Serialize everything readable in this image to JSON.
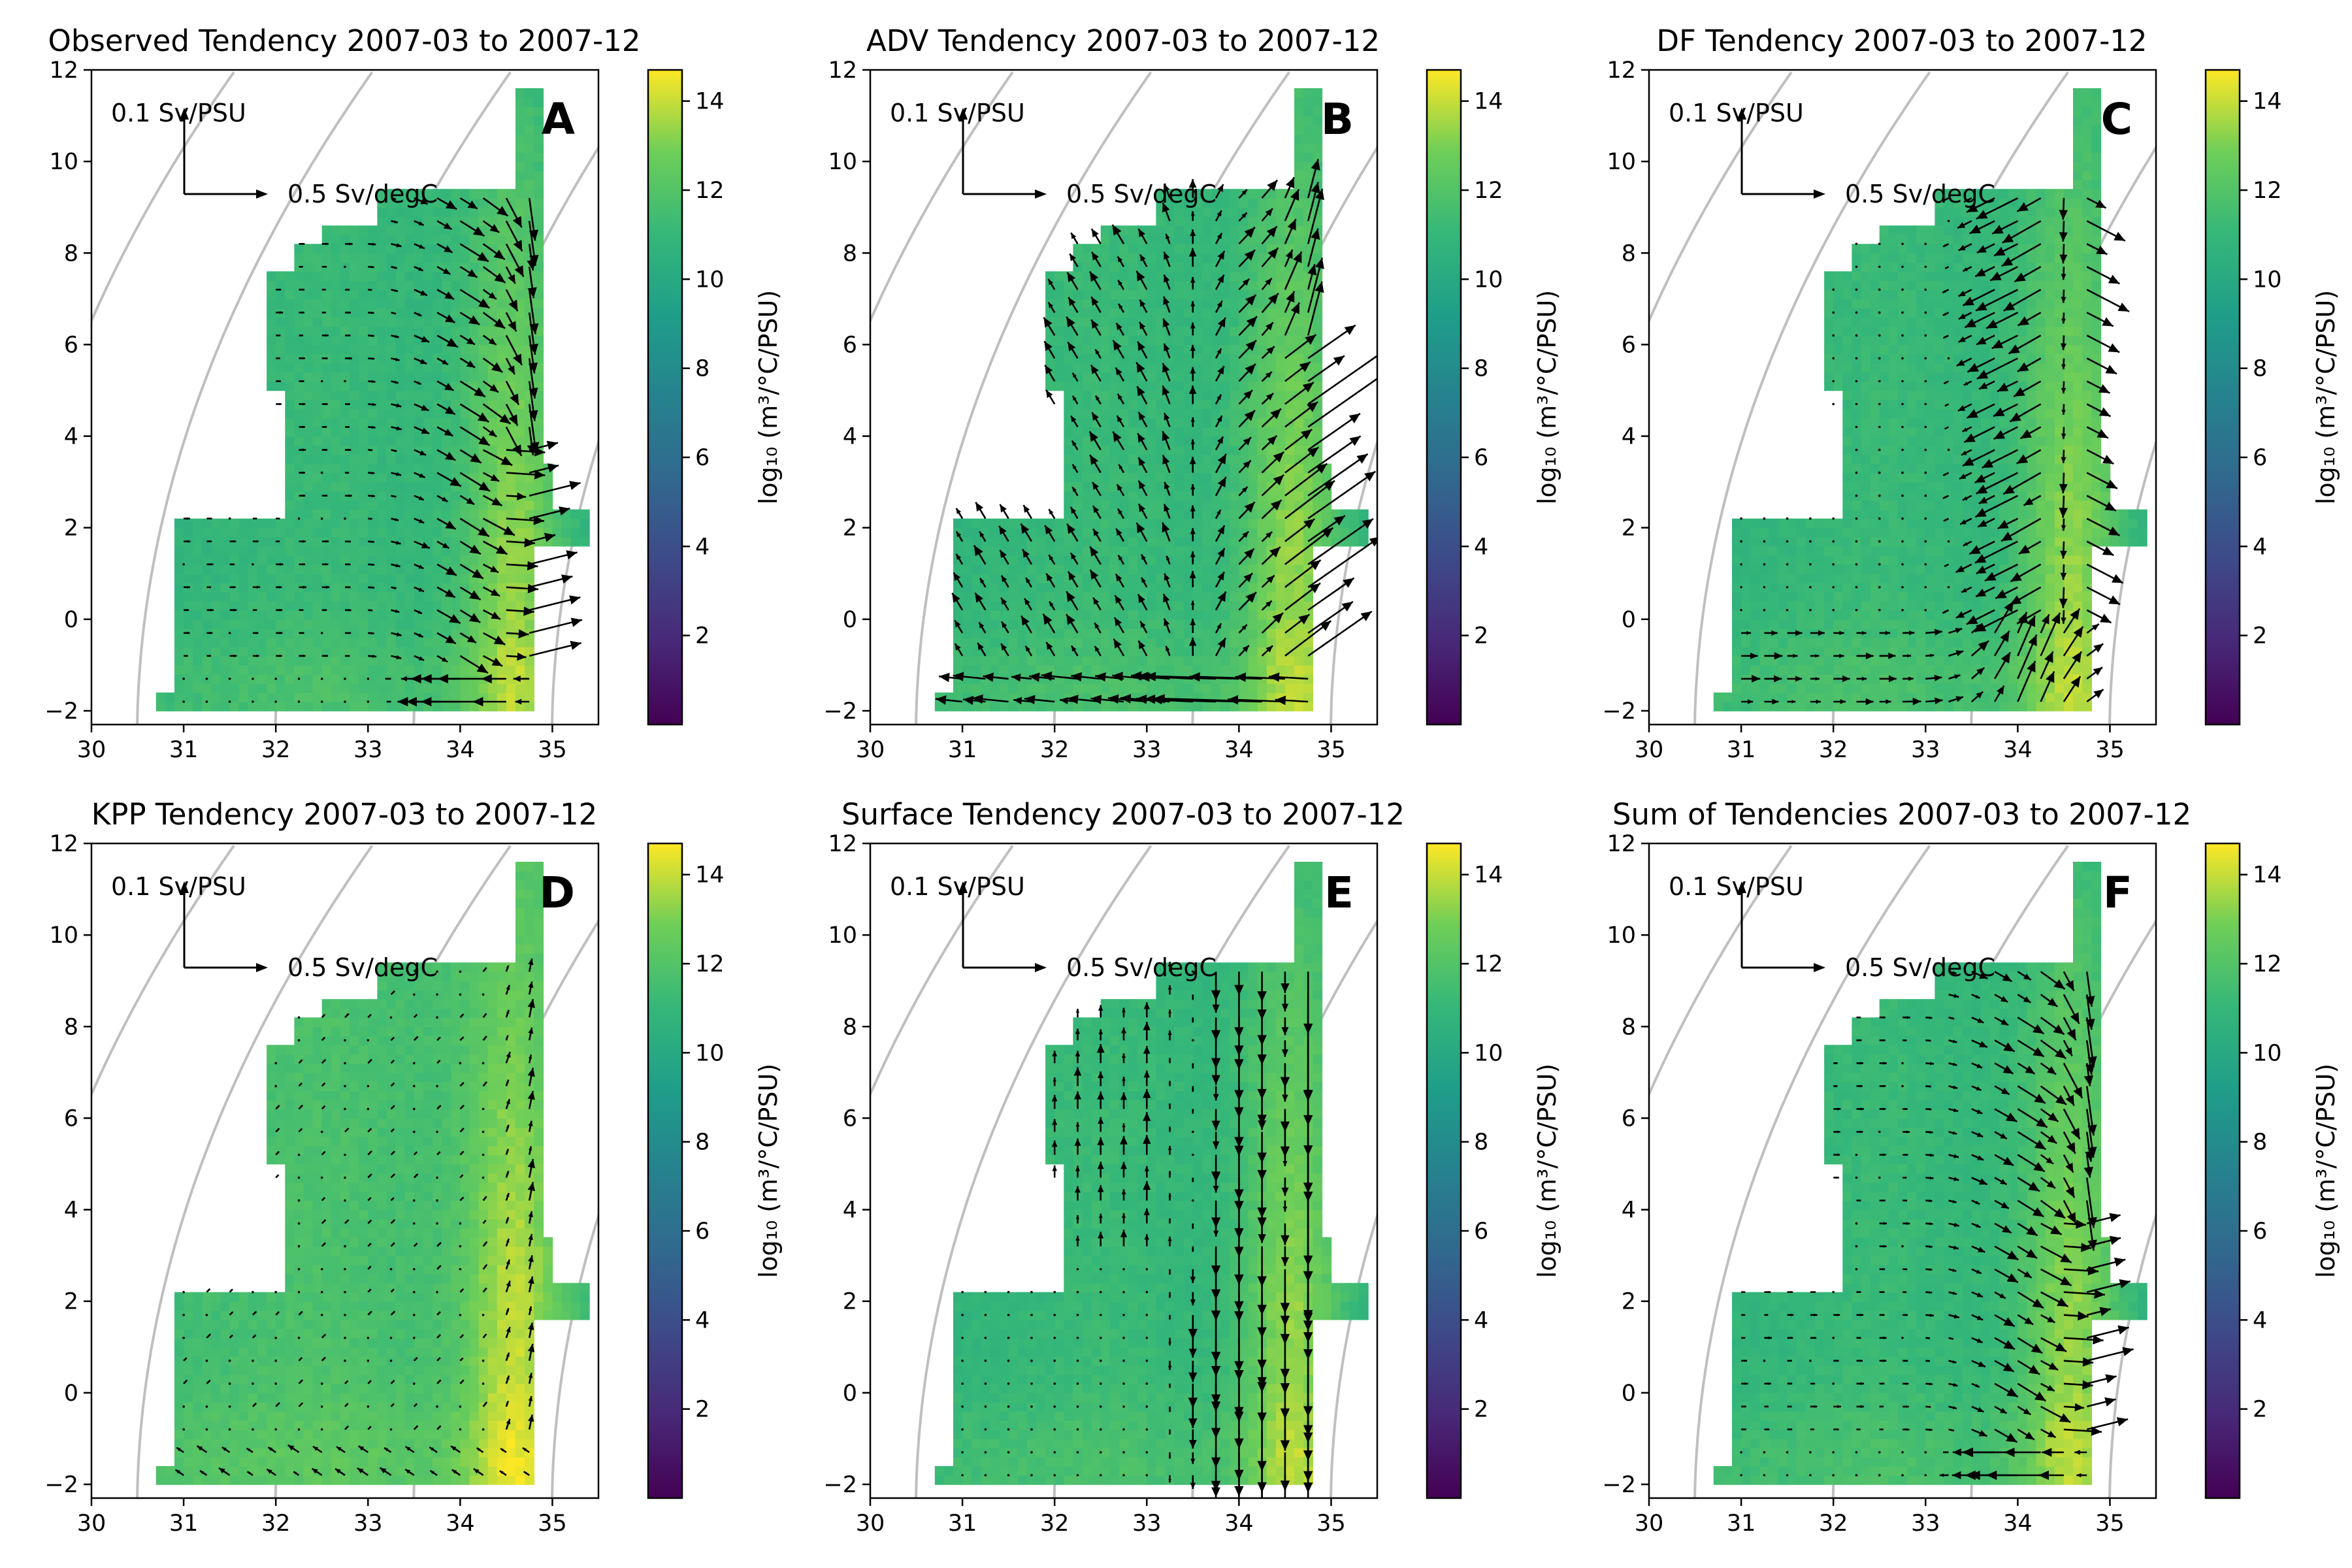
{
  "figure": {
    "colormap": "viridis",
    "quiver_color": "#000000",
    "isopycnal_color": "#bfbfbf",
    "xticks": [
      30,
      31,
      32,
      33,
      34,
      35
    ],
    "yticks": [
      -2,
      0,
      2,
      4,
      6,
      8,
      10,
      12
    ],
    "colorbar_ticks": [
      2,
      4,
      6,
      8,
      10,
      12,
      14
    ],
    "colorbar_label": "log₁₀ (m³/°C/PSU)",
    "key_salinity_label": "0.1 Sv/PSU",
    "key_temperature_label": "0.5 Sv/degC"
  },
  "chart_data": [
    {
      "type": "quiver",
      "panel": "A",
      "title": "Observed Tendency 2007-03 to 2007-12",
      "xlim": [
        30,
        35.5
      ],
      "ylim": [
        -2.3,
        12
      ],
      "clim": [
        0,
        14.7
      ],
      "mode": "observed",
      "key_arrows": {
        "salinity": "0.1 Sv/PSU",
        "temperature": "0.5 Sv/degC"
      }
    },
    {
      "type": "quiver",
      "panel": "B",
      "title": "ADV Tendency 2007-03 to 2007-12",
      "xlim": [
        30,
        35.5
      ],
      "ylim": [
        -2.3,
        12
      ],
      "clim": [
        0,
        14.7
      ],
      "mode": "adv",
      "key_arrows": {
        "salinity": "0.1 Sv/PSU",
        "temperature": "0.5 Sv/degC"
      }
    },
    {
      "type": "quiver",
      "panel": "C",
      "title": "DF Tendency 2007-03 to 2007-12",
      "xlim": [
        30,
        35.5
      ],
      "ylim": [
        -2.3,
        12
      ],
      "clim": [
        0,
        14.7
      ],
      "mode": "df",
      "key_arrows": {
        "salinity": "0.1 Sv/PSU",
        "temperature": "0.5 Sv/degC"
      }
    },
    {
      "type": "quiver",
      "panel": "D",
      "title": "KPP Tendency 2007-03 to 2007-12",
      "xlim": [
        30,
        35.5
      ],
      "ylim": [
        -2.3,
        12
      ],
      "clim": [
        0,
        14.7
      ],
      "mode": "kpp",
      "key_arrows": {
        "salinity": "0.1 Sv/PSU",
        "temperature": "0.5 Sv/degC"
      }
    },
    {
      "type": "quiver",
      "panel": "E",
      "title": "Surface Tendency 2007-03 to 2007-12",
      "xlim": [
        30,
        35.5
      ],
      "ylim": [
        -2.3,
        12
      ],
      "clim": [
        0,
        14.7
      ],
      "mode": "surface",
      "key_arrows": {
        "salinity": "0.1 Sv/PSU",
        "temperature": "0.5 Sv/degC"
      }
    },
    {
      "type": "quiver",
      "panel": "F",
      "title": "Sum of Tendencies 2007-03 to 2007-12",
      "xlim": [
        30,
        35.5
      ],
      "ylim": [
        -2.3,
        12
      ],
      "clim": [
        0,
        14.7
      ],
      "mode": "sum",
      "key_arrows": {
        "salinity": "0.1 Sv/PSU",
        "temperature": "0.5 Sv/degC"
      }
    }
  ]
}
